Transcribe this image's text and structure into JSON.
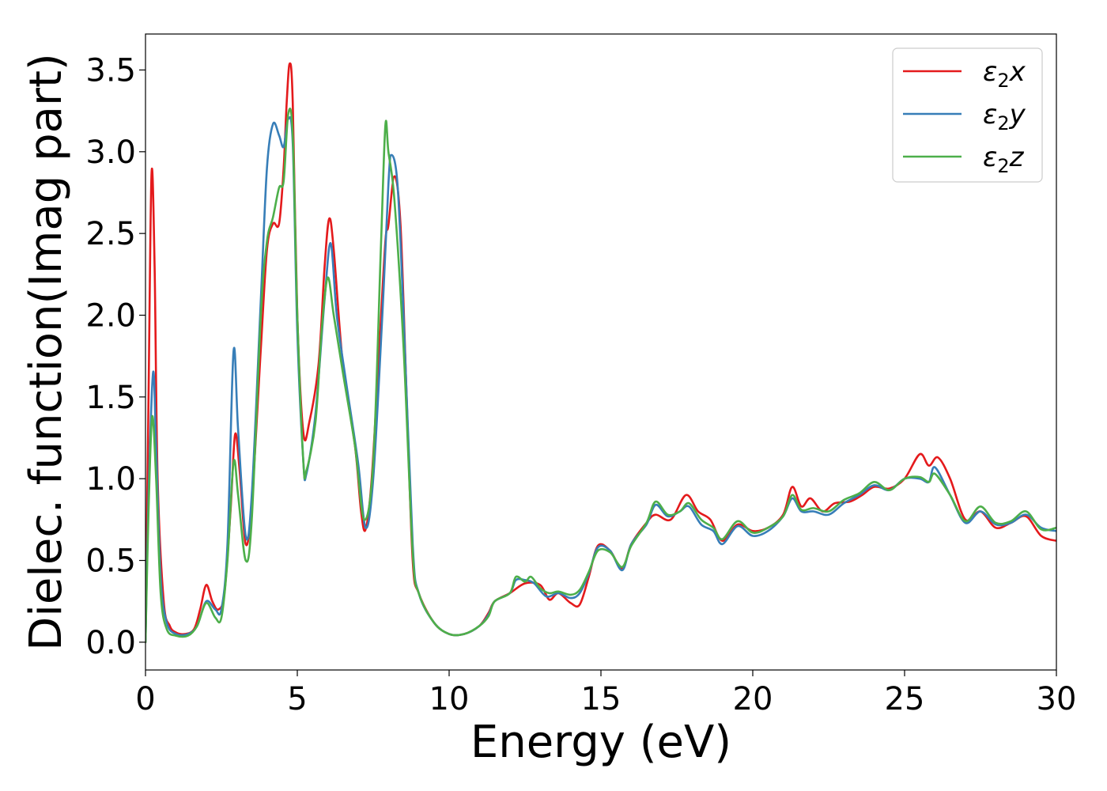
{
  "chart_data": {
    "type": "line",
    "xlabel": "Energy (eV)",
    "ylabel": "Dielec. function(Imag part)",
    "xlim": [
      0,
      30
    ],
    "ylim": [
      -0.17,
      3.72
    ],
    "xticks": [
      0,
      5,
      10,
      15,
      20,
      25,
      30
    ],
    "yticks": [
      0.0,
      0.5,
      1.0,
      1.5,
      2.0,
      2.5,
      3.0,
      3.5
    ],
    "xtick_labels": [
      "0",
      "5",
      "10",
      "15",
      "20",
      "25",
      "30"
    ],
    "ytick_labels": [
      "0.0",
      "0.5",
      "1.0",
      "1.5",
      "2.0",
      "2.5",
      "3.0",
      "3.5"
    ],
    "grid": false,
    "legend_position": "top-right",
    "series": [
      {
        "name": "ε₂x",
        "legend_main": "ε",
        "legend_sub": "2",
        "legend_var": "x",
        "color": "#e41a1c",
        "points": [
          [
            0,
            0
          ],
          [
            0.1,
            1.5
          ],
          [
            0.2,
            2.87
          ],
          [
            0.3,
            2.3
          ],
          [
            0.4,
            1.0
          ],
          [
            0.6,
            0.25
          ],
          [
            0.8,
            0.1
          ],
          [
            1.0,
            0.06
          ],
          [
            1.3,
            0.05
          ],
          [
            1.6,
            0.08
          ],
          [
            1.8,
            0.2
          ],
          [
            2.0,
            0.35
          ],
          [
            2.2,
            0.25
          ],
          [
            2.4,
            0.2
          ],
          [
            2.6,
            0.3
          ],
          [
            2.8,
            0.8
          ],
          [
            2.95,
            1.27
          ],
          [
            3.1,
            1.05
          ],
          [
            3.3,
            0.6
          ],
          [
            3.5,
            0.85
          ],
          [
            3.8,
            1.8
          ],
          [
            4.0,
            2.4
          ],
          [
            4.2,
            2.56
          ],
          [
            4.4,
            2.56
          ],
          [
            4.55,
            2.9
          ],
          [
            4.65,
            3.3
          ],
          [
            4.75,
            3.54
          ],
          [
            4.85,
            3.3
          ],
          [
            5.0,
            2.0
          ],
          [
            5.2,
            1.28
          ],
          [
            5.4,
            1.35
          ],
          [
            5.7,
            1.7
          ],
          [
            5.9,
            2.3
          ],
          [
            6.05,
            2.59
          ],
          [
            6.2,
            2.4
          ],
          [
            6.5,
            1.7
          ],
          [
            6.9,
            1.2
          ],
          [
            7.1,
            0.8
          ],
          [
            7.25,
            0.69
          ],
          [
            7.45,
            1.0
          ],
          [
            7.7,
            1.8
          ],
          [
            7.9,
            2.45
          ],
          [
            8.0,
            2.55
          ],
          [
            8.2,
            2.85
          ],
          [
            8.4,
            2.55
          ],
          [
            8.6,
            1.5
          ],
          [
            8.8,
            0.5
          ],
          [
            9.0,
            0.3
          ],
          [
            9.5,
            0.12
          ],
          [
            10.0,
            0.05
          ],
          [
            10.5,
            0.05
          ],
          [
            11.0,
            0.1
          ],
          [
            11.3,
            0.18
          ],
          [
            11.5,
            0.25
          ],
          [
            12.0,
            0.3
          ],
          [
            12.5,
            0.36
          ],
          [
            13.0,
            0.35
          ],
          [
            13.3,
            0.26
          ],
          [
            13.6,
            0.3
          ],
          [
            14.0,
            0.24
          ],
          [
            14.3,
            0.23
          ],
          [
            14.6,
            0.4
          ],
          [
            14.9,
            0.59
          ],
          [
            15.3,
            0.56
          ],
          [
            15.7,
            0.45
          ],
          [
            16.0,
            0.6
          ],
          [
            16.5,
            0.73
          ],
          [
            16.8,
            0.78
          ],
          [
            17.3,
            0.75
          ],
          [
            17.8,
            0.9
          ],
          [
            18.2,
            0.8
          ],
          [
            18.6,
            0.75
          ],
          [
            19.0,
            0.62
          ],
          [
            19.5,
            0.72
          ],
          [
            20.0,
            0.68
          ],
          [
            20.5,
            0.7
          ],
          [
            21.0,
            0.78
          ],
          [
            21.3,
            0.95
          ],
          [
            21.6,
            0.83
          ],
          [
            21.9,
            0.88
          ],
          [
            22.3,
            0.8
          ],
          [
            22.7,
            0.85
          ],
          [
            23.2,
            0.86
          ],
          [
            23.6,
            0.9
          ],
          [
            24.0,
            0.95
          ],
          [
            24.5,
            0.94
          ],
          [
            25.0,
            1.0
          ],
          [
            25.5,
            1.15
          ],
          [
            25.8,
            1.08
          ],
          [
            26.1,
            1.13
          ],
          [
            26.5,
            1.0
          ],
          [
            27.0,
            0.75
          ],
          [
            27.5,
            0.8
          ],
          [
            28.0,
            0.7
          ],
          [
            28.5,
            0.73
          ],
          [
            29.0,
            0.77
          ],
          [
            29.5,
            0.65
          ],
          [
            30.0,
            0.62
          ]
        ]
      },
      {
        "name": "ε₂y",
        "legend_main": "ε",
        "legend_sub": "2",
        "legend_var": "y",
        "color": "#377eb8",
        "points": [
          [
            0,
            0
          ],
          [
            0.1,
            0.9
          ],
          [
            0.25,
            1.65
          ],
          [
            0.35,
            1.2
          ],
          [
            0.5,
            0.4
          ],
          [
            0.7,
            0.12
          ],
          [
            1.0,
            0.05
          ],
          [
            1.4,
            0.05
          ],
          [
            1.7,
            0.1
          ],
          [
            2.0,
            0.25
          ],
          [
            2.3,
            0.2
          ],
          [
            2.5,
            0.2
          ],
          [
            2.7,
            0.6
          ],
          [
            2.9,
            1.78
          ],
          [
            3.05,
            1.3
          ],
          [
            3.3,
            0.65
          ],
          [
            3.5,
            0.9
          ],
          [
            3.8,
            2.1
          ],
          [
            4.0,
            2.9
          ],
          [
            4.2,
            3.17
          ],
          [
            4.4,
            3.1
          ],
          [
            4.55,
            3.03
          ],
          [
            4.7,
            3.2
          ],
          [
            4.85,
            3.05
          ],
          [
            5.0,
            1.9
          ],
          [
            5.2,
            1.1
          ],
          [
            5.3,
            1.03
          ],
          [
            5.6,
            1.4
          ],
          [
            5.9,
            2.1
          ],
          [
            6.1,
            2.44
          ],
          [
            6.3,
            2.0
          ],
          [
            6.6,
            1.6
          ],
          [
            7.0,
            1.1
          ],
          [
            7.25,
            0.7
          ],
          [
            7.5,
            1.0
          ],
          [
            7.8,
            2.0
          ],
          [
            8.0,
            2.8
          ],
          [
            8.1,
            2.98
          ],
          [
            8.3,
            2.8
          ],
          [
            8.5,
            2.0
          ],
          [
            8.8,
            0.6
          ],
          [
            9.0,
            0.3
          ],
          [
            9.5,
            0.12
          ],
          [
            10.0,
            0.05
          ],
          [
            10.5,
            0.05
          ],
          [
            11.0,
            0.1
          ],
          [
            11.3,
            0.17
          ],
          [
            11.5,
            0.25
          ],
          [
            12.0,
            0.3
          ],
          [
            12.2,
            0.38
          ],
          [
            12.5,
            0.38
          ],
          [
            12.8,
            0.36
          ],
          [
            13.2,
            0.28
          ],
          [
            13.6,
            0.3
          ],
          [
            14.0,
            0.27
          ],
          [
            14.3,
            0.3
          ],
          [
            14.6,
            0.42
          ],
          [
            14.9,
            0.58
          ],
          [
            15.3,
            0.56
          ],
          [
            15.7,
            0.44
          ],
          [
            16.0,
            0.6
          ],
          [
            16.5,
            0.72
          ],
          [
            16.8,
            0.84
          ],
          [
            17.2,
            0.77
          ],
          [
            17.6,
            0.8
          ],
          [
            17.9,
            0.83
          ],
          [
            18.3,
            0.72
          ],
          [
            18.7,
            0.68
          ],
          [
            19.0,
            0.6
          ],
          [
            19.5,
            0.71
          ],
          [
            20.0,
            0.65
          ],
          [
            20.5,
            0.68
          ],
          [
            21.0,
            0.77
          ],
          [
            21.3,
            0.88
          ],
          [
            21.6,
            0.8
          ],
          [
            22.0,
            0.8
          ],
          [
            22.5,
            0.78
          ],
          [
            23.0,
            0.85
          ],
          [
            23.5,
            0.9
          ],
          [
            24.0,
            0.96
          ],
          [
            24.5,
            0.93
          ],
          [
            25.0,
            1.0
          ],
          [
            25.5,
            1.0
          ],
          [
            25.8,
            0.98
          ],
          [
            26.0,
            1.07
          ],
          [
            26.5,
            0.9
          ],
          [
            27.0,
            0.73
          ],
          [
            27.5,
            0.8
          ],
          [
            28.0,
            0.72
          ],
          [
            28.5,
            0.73
          ],
          [
            29.0,
            0.78
          ],
          [
            29.5,
            0.7
          ],
          [
            30.0,
            0.68
          ]
        ]
      },
      {
        "name": "ε₂z",
        "legend_main": "ε",
        "legend_sub": "2",
        "legend_var": "z",
        "color": "#4daf4a",
        "points": [
          [
            0,
            0
          ],
          [
            0.1,
            0.8
          ],
          [
            0.22,
            1.38
          ],
          [
            0.35,
            1.0
          ],
          [
            0.5,
            0.3
          ],
          [
            0.7,
            0.08
          ],
          [
            1.0,
            0.04
          ],
          [
            1.4,
            0.04
          ],
          [
            1.7,
            0.1
          ],
          [
            2.0,
            0.24
          ],
          [
            2.3,
            0.15
          ],
          [
            2.5,
            0.15
          ],
          [
            2.7,
            0.5
          ],
          [
            2.9,
            1.1
          ],
          [
            3.05,
            0.9
          ],
          [
            3.3,
            0.5
          ],
          [
            3.5,
            0.75
          ],
          [
            3.8,
            2.0
          ],
          [
            4.0,
            2.45
          ],
          [
            4.2,
            2.6
          ],
          [
            4.4,
            2.78
          ],
          [
            4.55,
            2.82
          ],
          [
            4.7,
            3.23
          ],
          [
            4.85,
            3.1
          ],
          [
            5.0,
            2.0
          ],
          [
            5.2,
            1.1
          ],
          [
            5.3,
            1.05
          ],
          [
            5.6,
            1.35
          ],
          [
            5.8,
            1.9
          ],
          [
            6.0,
            2.23
          ],
          [
            6.2,
            2.0
          ],
          [
            6.5,
            1.65
          ],
          [
            6.9,
            1.2
          ],
          [
            7.2,
            0.75
          ],
          [
            7.5,
            1.1
          ],
          [
            7.75,
            2.4
          ],
          [
            7.9,
            3.16
          ],
          [
            8.0,
            3.0
          ],
          [
            8.2,
            2.7
          ],
          [
            8.5,
            1.8
          ],
          [
            8.8,
            0.55
          ],
          [
            9.0,
            0.3
          ],
          [
            9.5,
            0.12
          ],
          [
            10.0,
            0.05
          ],
          [
            10.5,
            0.05
          ],
          [
            11.0,
            0.1
          ],
          [
            11.3,
            0.16
          ],
          [
            11.5,
            0.25
          ],
          [
            12.0,
            0.3
          ],
          [
            12.2,
            0.4
          ],
          [
            12.5,
            0.37
          ],
          [
            12.7,
            0.4
          ],
          [
            13.0,
            0.33
          ],
          [
            13.3,
            0.3
          ],
          [
            13.6,
            0.31
          ],
          [
            14.0,
            0.29
          ],
          [
            14.3,
            0.32
          ],
          [
            14.6,
            0.43
          ],
          [
            14.9,
            0.56
          ],
          [
            15.3,
            0.55
          ],
          [
            15.7,
            0.46
          ],
          [
            16.0,
            0.59
          ],
          [
            16.5,
            0.73
          ],
          [
            16.8,
            0.86
          ],
          [
            17.2,
            0.78
          ],
          [
            17.6,
            0.8
          ],
          [
            17.9,
            0.85
          ],
          [
            18.3,
            0.75
          ],
          [
            18.7,
            0.7
          ],
          [
            19.0,
            0.63
          ],
          [
            19.5,
            0.74
          ],
          [
            20.0,
            0.67
          ],
          [
            20.5,
            0.7
          ],
          [
            21.0,
            0.77
          ],
          [
            21.3,
            0.9
          ],
          [
            21.6,
            0.81
          ],
          [
            22.0,
            0.82
          ],
          [
            22.5,
            0.8
          ],
          [
            23.0,
            0.87
          ],
          [
            23.5,
            0.91
          ],
          [
            24.0,
            0.98
          ],
          [
            24.5,
            0.93
          ],
          [
            25.0,
            1.0
          ],
          [
            25.5,
            1.01
          ],
          [
            25.8,
            0.98
          ],
          [
            26.0,
            1.03
          ],
          [
            26.5,
            0.9
          ],
          [
            27.0,
            0.74
          ],
          [
            27.5,
            0.83
          ],
          [
            28.0,
            0.73
          ],
          [
            28.5,
            0.74
          ],
          [
            29.0,
            0.8
          ],
          [
            29.5,
            0.69
          ],
          [
            30.0,
            0.7
          ]
        ]
      }
    ]
  }
}
